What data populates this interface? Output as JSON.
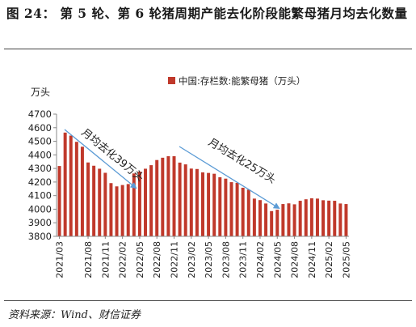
{
  "figure": {
    "title": "图 24： 第 5 轮、第 6 轮猪周期产能去化阶段能繁母猪月均去化数量",
    "source": "资料来源：Wind、财信证券"
  },
  "chart_data": {
    "type": "bar",
    "unit_label": "万头",
    "legend": "中国:存栏数:能繁母猪（万头）",
    "legend_placement": "top",
    "ylim": [
      3800,
      4700
    ],
    "yticks": [
      3800,
      3900,
      4000,
      4100,
      4200,
      4300,
      4400,
      4500,
      4600,
      4700
    ],
    "bar_color": "#c0392b",
    "grid": false,
    "x_tick_labels": [
      "2021/03",
      "2021/08",
      "2021/11",
      "2022/02",
      "2022/05",
      "2022/08",
      "2022/11",
      "2023/02",
      "2023/05",
      "2023/08",
      "2023/11",
      "2024/02",
      "2024/05",
      "2024/08",
      "2024/11",
      "2025/02",
      "2025/05"
    ],
    "categories": [
      "2021/03",
      "2021/04",
      "2021/05",
      "2021/06",
      "2021/07",
      "2021/08",
      "2021/09",
      "2021/10",
      "2021/11",
      "2021/12",
      "2022/01",
      "2022/02",
      "2022/03",
      "2022/04",
      "2022/05",
      "2022/06",
      "2022/07",
      "2022/08",
      "2022/09",
      "2022/10",
      "2022/11",
      "2022/12",
      "2023/01",
      "2023/02",
      "2023/03",
      "2023/04",
      "2023/05",
      "2023/06",
      "2023/07",
      "2023/08",
      "2023/09",
      "2023/10",
      "2023/11",
      "2023/12",
      "2024/01",
      "2024/02",
      "2024/03",
      "2024/04",
      "2024/05",
      "2024/06",
      "2024/07",
      "2024/08",
      "2024/09",
      "2024/10",
      "2024/11",
      "2024/12",
      "2025/01",
      "2025/02",
      "2025/03",
      "2025/04",
      "2025/05"
    ],
    "values": [
      4318,
      4564,
      4542,
      4496,
      4460,
      4344,
      4320,
      4298,
      4268,
      4192,
      4168,
      4178,
      4185,
      4263,
      4277,
      4298,
      4324,
      4362,
      4379,
      4390,
      4390,
      4343,
      4330,
      4299,
      4296,
      4271,
      4267,
      4261,
      4235,
      4225,
      4199,
      4194,
      4158,
      4144,
      4078,
      4067,
      4042,
      3986,
      3996,
      4038,
      4043,
      4036,
      4062,
      4073,
      4080,
      4078,
      4066,
      4063,
      4062,
      4042,
      4038
    ],
    "annotations": [
      {
        "text": "月均去化39万头",
        "from": "2021/03",
        "to": "2022/04"
      },
      {
        "text": "月均去化25万头",
        "from": "2022/11",
        "to": "2024/05"
      }
    ]
  }
}
